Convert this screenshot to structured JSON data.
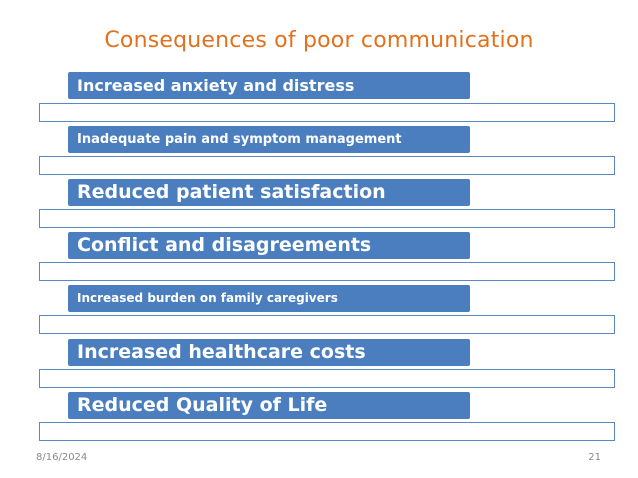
{
  "slide": {
    "title": "Consequences of poor communication",
    "items": [
      {
        "label": "Increased anxiety and distress"
      },
      {
        "label": "Inadequate pain and symptom management"
      },
      {
        "label": "Reduced patient satisfaction"
      },
      {
        "label": "Conflict and disagreements"
      },
      {
        "label": "Increased burden on family caregivers"
      },
      {
        "label": "Increased healthcare costs"
      },
      {
        "label": "Reduced Quality of Life"
      }
    ],
    "footer": {
      "date": "8/16/2024",
      "page": "21"
    }
  }
}
